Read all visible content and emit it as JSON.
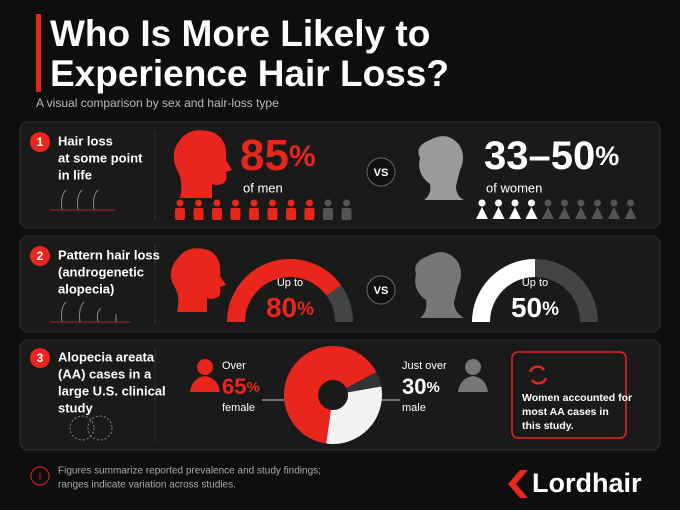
{
  "header": {
    "title_lines": [
      "Who Is More Likely to",
      "Experience Hair Loss?"
    ],
    "subtitle": "A visual comparison by sex and hair-loss type"
  },
  "sections": [
    {
      "number": "1",
      "label_lines": [
        "Hair loss",
        "at some point",
        "in life"
      ],
      "men": {
        "value": 85,
        "unit": "%",
        "caption": "of men"
      },
      "women": {
        "value_label": "33–50",
        "range": [
          33,
          50
        ],
        "unit": "%",
        "caption": "of women"
      },
      "vs": "VS"
    },
    {
      "number": "2",
      "label_lines": [
        "Pattern hair loss",
        "(androgenetic",
        "alopecia)"
      ],
      "men": {
        "prefix": "Up to",
        "value": 80,
        "unit": "%"
      },
      "women": {
        "prefix": "Up to",
        "value": 50,
        "unit": "%"
      },
      "vs": "VS"
    },
    {
      "number": "3",
      "label_lines": [
        "Alopecia areata",
        "(AA) cases in a",
        "large U.S. clinical",
        "study"
      ],
      "female": {
        "prefix": "Over",
        "value": 65,
        "unit": "%",
        "caption": "female"
      },
      "male": {
        "prefix": "Just over",
        "value": 30,
        "unit": "%",
        "caption": "male"
      },
      "callout_lines": [
        "Women accounted for",
        "most AA cases in",
        "this study."
      ]
    }
  ],
  "footer": {
    "note_lines": [
      "Figures summarize reported prevalence and study findings;",
      "ranges indicate variation across studies."
    ],
    "brand": "Lordhair"
  }
}
